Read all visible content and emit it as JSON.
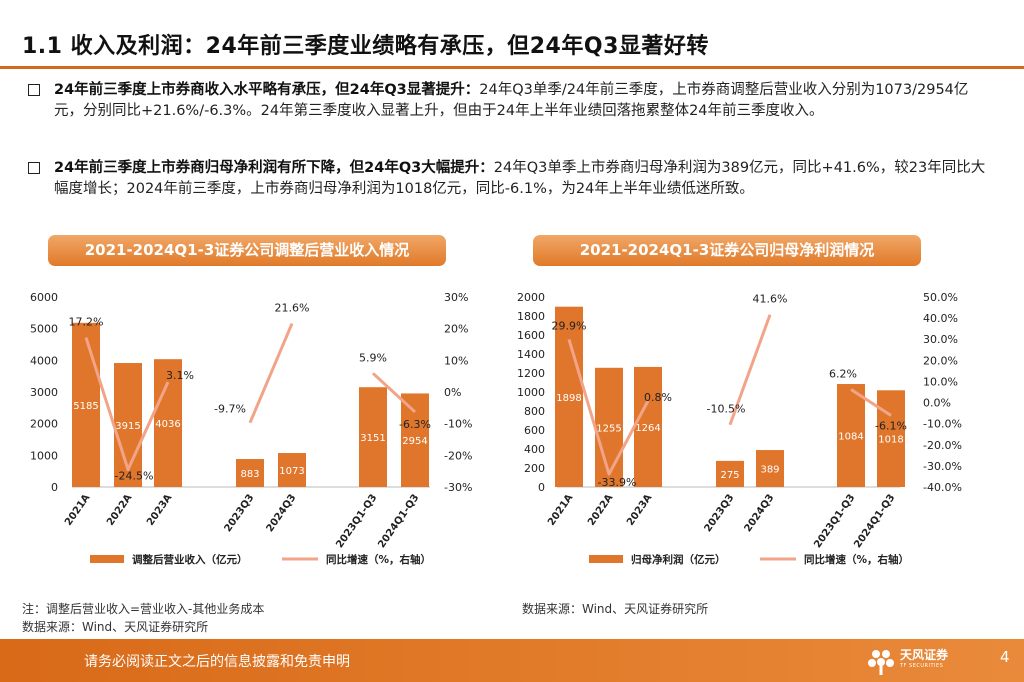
{
  "title": "1.1 收入及利润：24年前三季度业绩略有承压，但24年Q3显著好转",
  "bullets": [
    {
      "bold": "24年前三季度上市券商收入水平略有承压，但24年Q3显著提升：",
      "text": "24年Q3单季/24年前三季度，上市券商调整后营业收入分别为1073/2954亿元，分别同比+21.6%/-6.3%。24年第三季度收入显著上升，但由于24年上半年业绩回落拖累整体24年前三季度收入。"
    },
    {
      "bold": "24年前三季度上市券商归母净利润有所下降，但24年Q3大幅提升：",
      "text": "24年Q3单季上市券商归母净利润为389亿元，同比+41.6%，较23年同比大幅度增长；2024年前三季度，上市券商归母净利润为1018亿元，同比-6.1%，为24年上半年业绩低迷所致。"
    }
  ],
  "chart_data": [
    {
      "type": "bar",
      "title": "2021-2024Q1-3证券公司调整后营业收入情况",
      "categories": [
        "2021A",
        "2022A",
        "2023A",
        "2023Q3",
        "2024Q3",
        "2023Q1-Q3",
        "2024Q1-Q3"
      ],
      "series": [
        {
          "name": "调整后营业收入（亿元）",
          "values": [
            5185,
            3915,
            4036,
            883,
            1073,
            3151,
            2954
          ],
          "labels": [
            "5185",
            "3915",
            "4036",
            "883",
            "1073",
            "3151",
            "2954"
          ]
        },
        {
          "name": "同比增速（%，右轴）",
          "type": "line",
          "axis": "right",
          "values": [
            17.2,
            -24.5,
            3.1,
            -9.7,
            21.6,
            5.9,
            -6.3
          ],
          "labels": [
            "17.2%",
            "-24.5%",
            "3.1%",
            "-9.7%",
            "21.6%",
            "5.9%",
            "-6.3%"
          ]
        }
      ],
      "line_segments": [
        [
          0,
          1,
          2
        ],
        [
          3,
          4
        ],
        [
          5,
          6
        ]
      ],
      "ylim": [
        0,
        6000
      ],
      "yticks": [
        "0",
        "1000",
        "2000",
        "3000",
        "4000",
        "5000",
        "6000"
      ],
      "y2lim": [
        -30,
        30
      ],
      "y2ticks": [
        "-30%",
        "-20%",
        "-10%",
        "0%",
        "10%",
        "20%",
        "30%"
      ],
      "legend_position": "bottom"
    },
    {
      "type": "bar",
      "title": "2021-2024Q1-3证券公司归母净利润情况",
      "categories": [
        "2021A",
        "2022A",
        "2023A",
        "2023Q3",
        "2024Q3",
        "2023Q1-Q3",
        "2024Q1-Q3"
      ],
      "series": [
        {
          "name": "归母净利润（亿元）",
          "values": [
            1898,
            1255,
            1264,
            275,
            389,
            1084,
            1018
          ],
          "labels": [
            "1898",
            "1255",
            "1264",
            "275",
            "389",
            "1084",
            "1018"
          ]
        },
        {
          "name": "同比增速（%，右轴）",
          "type": "line",
          "axis": "right",
          "values": [
            29.9,
            -33.9,
            0.8,
            -10.5,
            41.6,
            6.2,
            -6.1
          ],
          "labels": [
            "29.9%",
            "-33.9%",
            "0.8%",
            "-10.5%",
            "41.6%",
            "6.2%",
            "-6.1%"
          ]
        }
      ],
      "line_segments": [
        [
          0,
          1,
          2
        ],
        [
          3,
          4
        ],
        [
          5,
          6
        ]
      ],
      "ylim": [
        0,
        2000
      ],
      "yticks": [
        "0",
        "200",
        "400",
        "600",
        "800",
        "1000",
        "1200",
        "1400",
        "1600",
        "1800",
        "2000"
      ],
      "y2lim": [
        -40,
        50
      ],
      "y2ticks": [
        "-40.0%",
        "-30.0%",
        "-20.0%",
        "-10.0%",
        "0.0%",
        "10.0%",
        "20.0%",
        "30.0%",
        "40.0%",
        "50.0%"
      ],
      "legend_position": "bottom"
    }
  ],
  "notes": {
    "left_note": "注：调整后营业收入=营业收入-其他业务成本",
    "left_source": "数据来源：Wind、天风证券研究所",
    "right_source": "数据来源：Wind、天风证券研究所"
  },
  "colors": {
    "bar": "#e0762b",
    "line": "#f2a488",
    "accent": "#d2691e"
  },
  "footer": {
    "disclaimer": "请务必阅读正文之后的信息披露和免责申明",
    "logo_text": "天风证券",
    "logo_sub": "TF SECURITIES",
    "page": "4"
  }
}
